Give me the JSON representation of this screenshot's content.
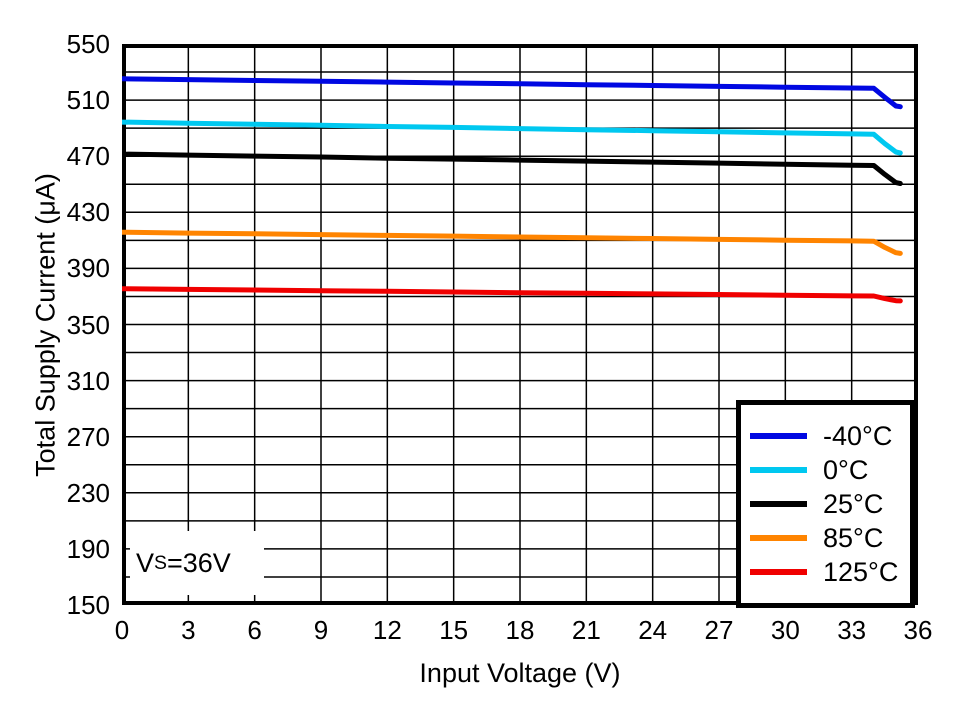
{
  "chart_data": {
    "type": "line",
    "title": "",
    "xlabel": "Input Voltage (V)",
    "ylabel": "Total Supply Current (μA)",
    "xlim": [
      0,
      36
    ],
    "ylim": [
      150,
      550
    ],
    "x_tick_step": 3,
    "y_label_step": 40,
    "y_grid_step": 20,
    "x_ticks": [
      0,
      3,
      6,
      9,
      12,
      15,
      18,
      21,
      24,
      27,
      30,
      33,
      36
    ],
    "y_ticks": [
      550,
      510,
      470,
      430,
      390,
      350,
      310,
      270,
      230,
      190,
      150
    ],
    "grid": "on",
    "legend_position": "bottom-right",
    "annotation": {
      "base": "V",
      "sub": "S",
      "rest": "=36V"
    },
    "x": [
      0,
      3,
      6,
      9,
      12,
      15,
      18,
      21,
      24,
      27,
      30,
      33,
      34,
      34.5,
      35,
      35.2
    ],
    "series": [
      {
        "name": "-40°C",
        "color": "#0008E2",
        "values": [
          525.2,
          524.6,
          524.0,
          523.4,
          522.8,
          522.2,
          521.6,
          521.0,
          520.4,
          519.8,
          519.2,
          518.6,
          518.4,
          512.0,
          505.8,
          505.3
        ]
      },
      {
        "name": "0°C",
        "color": "#00C8F0",
        "values": [
          494.3,
          493.5,
          492.8,
          492.0,
          491.2,
          490.5,
          489.7,
          488.9,
          488.2,
          487.4,
          486.6,
          485.9,
          485.6,
          479.0,
          473.0,
          472.3
        ]
      },
      {
        "name": "25°C",
        "color": "#000000",
        "values": [
          471.5,
          470.8,
          470.1,
          469.4,
          468.6,
          467.9,
          467.2,
          466.5,
          465.8,
          465.1,
          464.3,
          463.6,
          463.4,
          457.0,
          451.2,
          450.5
        ]
      },
      {
        "name": "85°C",
        "color": "#FF8400",
        "values": [
          415.8,
          415.2,
          414.7,
          414.1,
          413.5,
          413.0,
          412.4,
          411.8,
          411.3,
          410.7,
          410.1,
          409.6,
          409.4,
          405.0,
          401.2,
          400.7
        ]
      },
      {
        "name": "125°C",
        "color": "#F00000",
        "values": [
          375.5,
          375.0,
          374.6,
          374.1,
          373.7,
          373.2,
          372.7,
          372.3,
          371.8,
          371.4,
          370.9,
          370.4,
          370.3,
          368.5,
          367.0,
          366.8
        ]
      }
    ],
    "style": {
      "grid_color": "#000000",
      "frame_color": "#000000",
      "background": "#ffffff"
    }
  }
}
